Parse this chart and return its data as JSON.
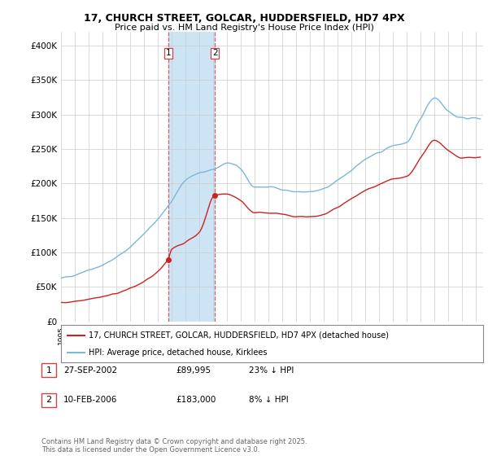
{
  "title1": "17, CHURCH STREET, GOLCAR, HUDDERSFIELD, HD7 4PX",
  "title2": "Price paid vs. HM Land Registry's House Price Index (HPI)",
  "ylabel_ticks": [
    "£0",
    "£50K",
    "£100K",
    "£150K",
    "£200K",
    "£250K",
    "£300K",
    "£350K",
    "£400K"
  ],
  "ytick_vals": [
    0,
    50000,
    100000,
    150000,
    200000,
    250000,
    300000,
    350000,
    400000
  ],
  "ylim": [
    0,
    420000
  ],
  "xlim_start": 1995.0,
  "xlim_end": 2025.5,
  "hpi_color": "#7ab8d9",
  "price_color": "#cc2222",
  "transaction1_year": 2002.74,
  "transaction1_price": 89995,
  "transaction2_year": 2006.12,
  "transaction2_price": 183000,
  "legend_line1": "17, CHURCH STREET, GOLCAR, HUDDERSFIELD, HD7 4PX (detached house)",
  "legend_line2": "HPI: Average price, detached house, Kirklees",
  "table_row1": [
    "1",
    "27-SEP-2002",
    "£89,995",
    "23% ↓ HPI"
  ],
  "table_row2": [
    "2",
    "10-FEB-2006",
    "£183,000",
    "8% ↓ HPI"
  ],
  "footer": "Contains HM Land Registry data © Crown copyright and database right 2025.\nThis data is licensed under the Open Government Licence v3.0.",
  "background_color": "#ffffff",
  "grid_color": "#cccccc",
  "shaded_region_color": "#cde4f5",
  "dashed_line_color": "#cc4444",
  "hpi_points_x": [
    1995,
    1996,
    1997,
    1998,
    1999,
    2000,
    2001,
    2002,
    2003,
    2004,
    2005,
    2006,
    2007,
    2008,
    2009,
    2010,
    2011,
    2012,
    2013,
    2014,
    2015,
    2016,
    2017,
    2018,
    2019,
    2020,
    2021,
    2022,
    2023,
    2024,
    2025
  ],
  "hpi_points_y": [
    62000,
    68000,
    75000,
    82000,
    93000,
    108000,
    128000,
    148000,
    175000,
    205000,
    215000,
    220000,
    230000,
    220000,
    195000,
    195000,
    192000,
    188000,
    188000,
    192000,
    205000,
    220000,
    235000,
    245000,
    255000,
    260000,
    295000,
    325000,
    305000,
    295000,
    295000
  ],
  "price_points_x": [
    1995,
    1996,
    1997,
    1998,
    1999,
    2000,
    2001,
    2002.74,
    2003,
    2004,
    2005,
    2006.12,
    2007,
    2008,
    2009,
    2010,
    2011,
    2012,
    2013,
    2014,
    2015,
    2016,
    2017,
    2018,
    2019,
    2020,
    2021,
    2022,
    2023,
    2024,
    2025
  ],
  "price_points_y": [
    27000,
    29500,
    33000,
    36000,
    41000,
    48000,
    58000,
    89995,
    105000,
    115000,
    130000,
    183000,
    185000,
    175000,
    158000,
    158000,
    155000,
    152000,
    152000,
    155000,
    166000,
    178000,
    190000,
    198000,
    206000,
    210000,
    238000,
    263000,
    247000,
    238000,
    238000
  ]
}
